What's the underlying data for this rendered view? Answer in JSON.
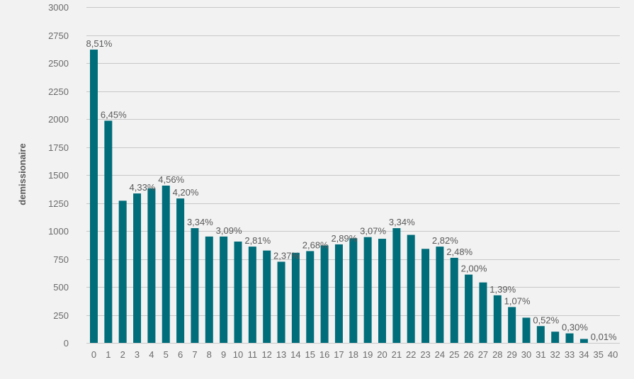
{
  "chart_data": {
    "type": "bar",
    "title": "",
    "xlabel": "",
    "ylabel": "demissionaire",
    "ylim": [
      0,
      3000
    ],
    "yticks": [
      0,
      250,
      500,
      750,
      1000,
      1250,
      1500,
      1750,
      2000,
      2250,
      2500,
      2750,
      3000
    ],
    "grid": true,
    "legend": "none",
    "bar_color": "#006d7a",
    "background": "#f2f2f2",
    "categories": [
      "0",
      "1",
      "2",
      "3",
      "4",
      "5",
      "6",
      "7",
      "8",
      "9",
      "10",
      "11",
      "12",
      "13",
      "14",
      "15",
      "16",
      "17",
      "18",
      "19",
      "20",
      "21",
      "22",
      "23",
      "24",
      "25",
      "26",
      "27",
      "28",
      "29",
      "30",
      "31",
      "32",
      "33",
      "34",
      "35",
      "40"
    ],
    "values": [
      2620,
      1985,
      1270,
      1335,
      1380,
      1405,
      1290,
      1025,
      950,
      950,
      905,
      860,
      825,
      725,
      805,
      820,
      870,
      880,
      935,
      945,
      930,
      1025,
      965,
      840,
      860,
      760,
      610,
      540,
      425,
      320,
      225,
      150,
      100,
      85,
      35,
      0,
      0
    ],
    "data_labels": [
      "8,51%",
      "6,45%",
      "",
      "4,33%",
      "",
      "4,56%",
      "4,20%",
      "3,34%",
      "",
      "3,09%",
      "",
      "2,81%",
      "",
      "2,37%",
      "",
      "2,68%",
      "",
      "2,89%",
      "",
      "3,07%",
      "",
      "3,34%",
      "",
      "",
      "2,82%",
      "2,48%",
      "2,00%",
      "",
      "1,39%",
      "1,07%",
      "",
      "0,52%",
      "",
      "0,30%",
      "",
      "0,01%",
      ""
    ]
  }
}
